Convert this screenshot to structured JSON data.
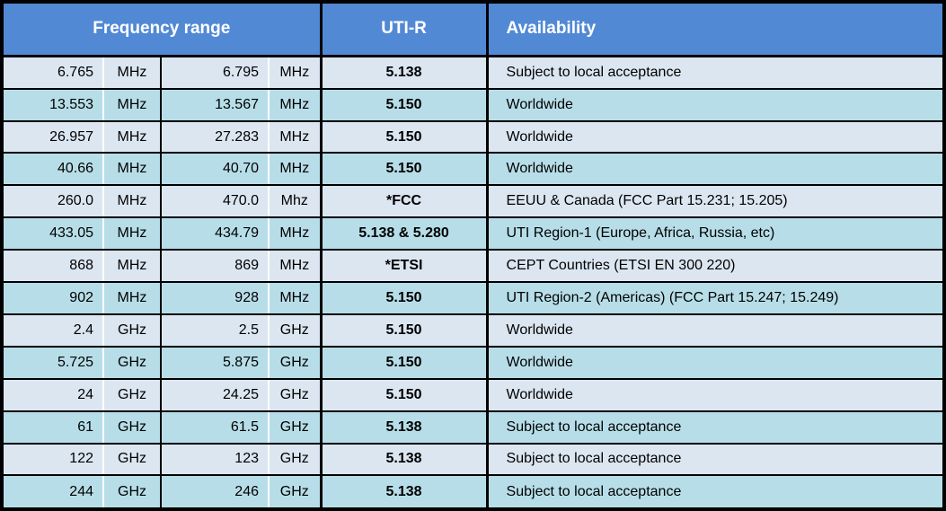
{
  "table": {
    "header": {
      "frequency_range": "Frequency range",
      "uti_r": "UTI-R",
      "availability": "Availability"
    },
    "rows": [
      {
        "from_value": "6.765",
        "from_unit": "MHz",
        "to_value": "6.795",
        "to_unit": "MHz",
        "uti_r": "5.138",
        "availability": "Subject to local acceptance"
      },
      {
        "from_value": "13.553",
        "from_unit": "MHz",
        "to_value": "13.567",
        "to_unit": "MHz",
        "uti_r": "5.150",
        "availability": "Worldwide"
      },
      {
        "from_value": "26.957",
        "from_unit": "MHz",
        "to_value": "27.283",
        "to_unit": "MHz",
        "uti_r": "5.150",
        "availability": "Worldwide"
      },
      {
        "from_value": "40.66",
        "from_unit": "MHz",
        "to_value": "40.70",
        "to_unit": "MHz",
        "uti_r": "5.150",
        "availability": "Worldwide"
      },
      {
        "from_value": "260.0",
        "from_unit": "MHz",
        "to_value": "470.0",
        "to_unit": "Mhz",
        "uti_r": "*FCC",
        "availability": "EEUU & Canada (FCC Part 15.231; 15.205)"
      },
      {
        "from_value": "433.05",
        "from_unit": "MHz",
        "to_value": "434.79",
        "to_unit": "MHz",
        "uti_r": "5.138 & 5.280",
        "availability": "UTI Region-1 (Europe, Africa, Russia, etc)"
      },
      {
        "from_value": "868",
        "from_unit": "MHz",
        "to_value": "869",
        "to_unit": "MHz",
        "uti_r": "*ETSI",
        "availability": "CEPT Countries (ETSI EN 300 220)"
      },
      {
        "from_value": "902",
        "from_unit": "MHz",
        "to_value": "928",
        "to_unit": "MHz",
        "uti_r": "5.150",
        "availability": "UTI Region-2 (Americas) (FCC Part 15.247; 15.249)"
      },
      {
        "from_value": "2.4",
        "from_unit": "GHz",
        "to_value": "2.5",
        "to_unit": "GHz",
        "uti_r": "5.150",
        "availability": "Worldwide"
      },
      {
        "from_value": "5.725",
        "from_unit": "GHz",
        "to_value": "5.875",
        "to_unit": "GHz",
        "uti_r": "5.150",
        "availability": "Worldwide"
      },
      {
        "from_value": "24",
        "from_unit": "GHz",
        "to_value": "24.25",
        "to_unit": "GHz",
        "uti_r": "5.150",
        "availability": "Worldwide"
      },
      {
        "from_value": "61",
        "from_unit": "GHz",
        "to_value": "61.5",
        "to_unit": "GHz",
        "uti_r": "5.138",
        "availability": "Subject to local acceptance"
      },
      {
        "from_value": "122",
        "from_unit": "GHz",
        "to_value": "123",
        "to_unit": "GHz",
        "uti_r": "5.138",
        "availability": "Subject to local acceptance"
      },
      {
        "from_value": "244",
        "from_unit": "GHz",
        "to_value": "246",
        "to_unit": "GHz",
        "uti_r": "5.138",
        "availability": "Subject to local acceptance"
      }
    ]
  },
  "colors": {
    "header_bg": "#5289D5",
    "header_text": "#FFFFFF",
    "row_light_bg": "#DCE6F1",
    "row_cyan_bg": "#B7DEE8",
    "border": "#000000",
    "separator_white": "#FFFFFF",
    "text": "#000000"
  }
}
